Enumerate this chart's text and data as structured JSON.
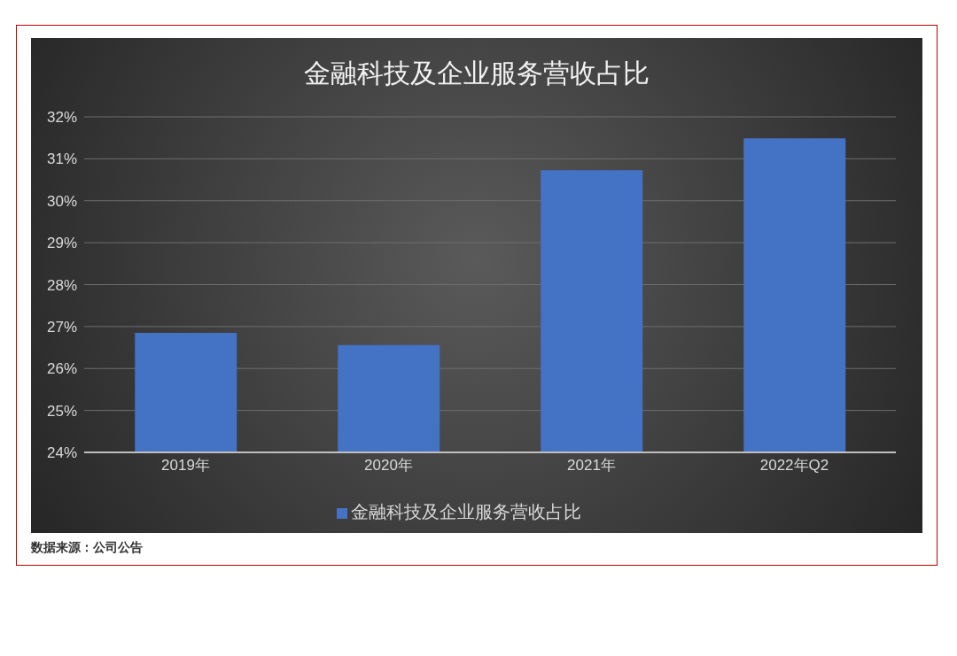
{
  "chart_data": {
    "type": "bar",
    "title": "金融科技及企业服务营收占比",
    "categories": [
      "2019年",
      "2020年",
      "2021年",
      "2022年Q2"
    ],
    "series": [
      {
        "name": "金融科技及企业服务营收占比",
        "color": "#4472c4",
        "values": [
          26.85,
          26.56,
          30.73,
          31.49
        ]
      }
    ],
    "ylim": [
      24,
      32
    ],
    "yticks": [
      {
        "value": 24,
        "label": "24%"
      },
      {
        "value": 25,
        "label": "25%"
      },
      {
        "value": 26,
        "label": "26%"
      },
      {
        "value": 27,
        "label": "27%"
      },
      {
        "value": 28,
        "label": "28%"
      },
      {
        "value": 29,
        "label": "29%"
      },
      {
        "value": 30,
        "label": "30%"
      },
      {
        "value": 31,
        "label": "31%"
      },
      {
        "value": 32,
        "label": "32%"
      }
    ],
    "grid": "y",
    "legend": "bottom",
    "annotations": [
      "数据来源：公司公告"
    ]
  }
}
